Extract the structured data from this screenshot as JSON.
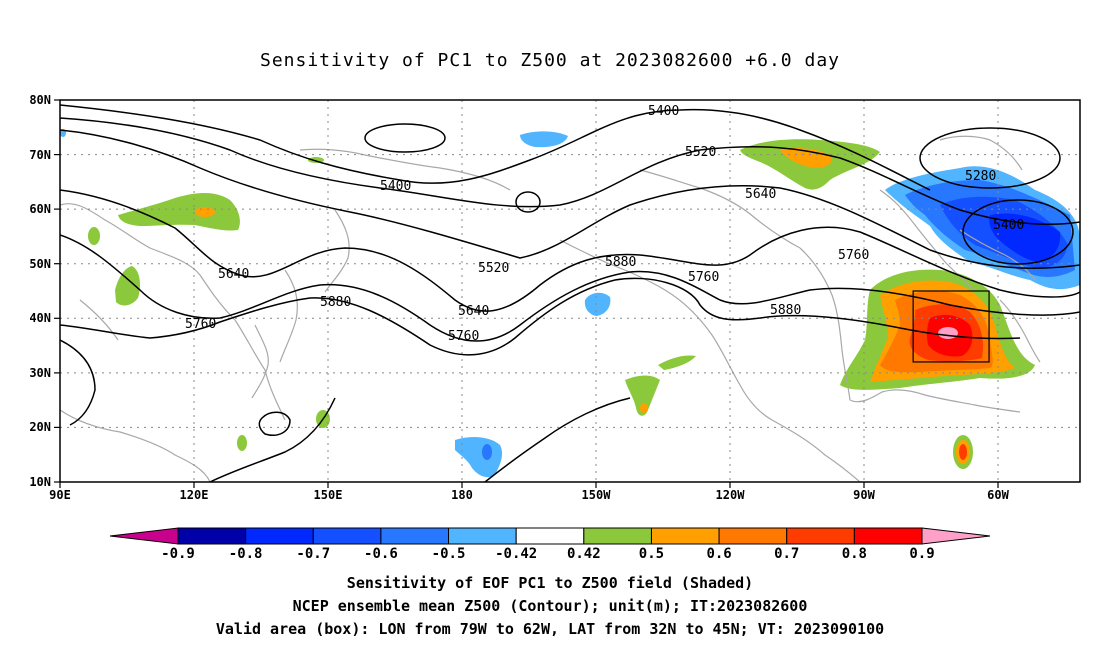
{
  "title": "Sensitivity of PC1 to Z500 at 2023082600 +6.0 day",
  "lon_ticks": [
    "90E",
    "120E",
    "150E",
    "180",
    "150W",
    "120W",
    "90W",
    "60W"
  ],
  "lat_ticks": [
    "80N",
    "70N",
    "60N",
    "50N",
    "40N",
    "30N",
    "20N",
    "10N"
  ],
  "contour_labels": [
    {
      "text": "5400",
      "lon": 1,
      "lat": 65
    },
    {
      "text": "5400",
      "lon": 1,
      "lat": 65
    },
    {
      "text": "5520",
      "lon": 1,
      "lat": 65
    },
    {
      "text": "5640",
      "lon": 1,
      "lat": 65
    },
    {
      "text": "5760",
      "lon": 1,
      "lat": 65
    },
    {
      "text": "5880",
      "lon": 1,
      "lat": 65
    },
    {
      "text": "5520",
      "lon": 1,
      "lat": 65
    },
    {
      "text": "5880",
      "lon": 1,
      "lat": 65
    },
    {
      "text": "5640",
      "lon": 1,
      "lat": 65
    },
    {
      "text": "5760",
      "lon": 1,
      "lat": 65
    },
    {
      "text": "5640",
      "lon": 1,
      "lat": 65
    },
    {
      "text": "5760",
      "lon": 1,
      "lat": 65
    },
    {
      "text": "5880",
      "lon": 1,
      "lat": 65
    },
    {
      "text": "5760",
      "lon": 1,
      "lat": 65
    },
    {
      "text": "5280",
      "lon": 1,
      "lat": 65
    },
    {
      "text": "5400",
      "lon": 1,
      "lat": 65
    }
  ],
  "colorbar": {
    "labels": [
      "-0.9",
      "-0.8",
      "-0.7",
      "-0.6",
      "-0.5",
      "-0.42",
      "0.42",
      "0.5",
      "0.6",
      "0.7",
      "0.8",
      "0.9"
    ],
    "colors": [
      "#0000a8",
      "#0028ff",
      "#1450ff",
      "#2878ff",
      "#50b4ff",
      "#ffffff",
      "#8cc83c",
      "#ffa000",
      "#ff7800",
      "#ff3c00",
      "#ff0000"
    ],
    "end_low": "#c8008c",
    "end_high": "#ffa0c8"
  },
  "valid_box": {
    "lon_west": -79,
    "lon_east": -62,
    "lat_south": 32,
    "lat_north": 45
  },
  "captions": [
    "Sensitivity of EOF PC1 to Z500 field (Shaded)",
    "NCEP ensemble mean Z500 (Contour); unit(m); IT:2023082600",
    "Valid area (box): LON from 79W to 62W, LAT from 32N to 45N; VT: 2023090100"
  ]
}
